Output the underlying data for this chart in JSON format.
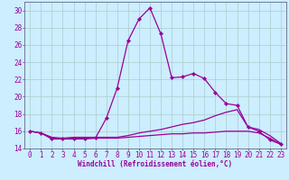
{
  "xlabel": "Windchill (Refroidissement éolien,°C)",
  "background_color": "#cceeff",
  "grid_color": "#aacccc",
  "line_color": "#990099",
  "spine_color": "#666688",
  "xlim": [
    -0.5,
    23.5
  ],
  "ylim": [
    14,
    31
  ],
  "yticks": [
    14,
    16,
    18,
    20,
    22,
    24,
    26,
    28,
    30
  ],
  "xticks": [
    0,
    1,
    2,
    3,
    4,
    5,
    6,
    7,
    8,
    9,
    10,
    11,
    12,
    13,
    14,
    15,
    16,
    17,
    18,
    19,
    20,
    21,
    22,
    23
  ],
  "series1_x": [
    0,
    1,
    2,
    3,
    4,
    5,
    6,
    7,
    8,
    9,
    10,
    11,
    12,
    13,
    14,
    15,
    16,
    17,
    18,
    19,
    20,
    21,
    22,
    23
  ],
  "series1_y": [
    16.0,
    15.8,
    15.1,
    15.1,
    15.1,
    15.1,
    15.2,
    17.5,
    21.0,
    26.5,
    29.0,
    30.3,
    27.3,
    22.2,
    22.3,
    22.7,
    22.1,
    20.5,
    19.2,
    19.0,
    16.5,
    16.0,
    15.0,
    14.5
  ],
  "series2_x": [
    0,
    1,
    2,
    3,
    4,
    5,
    6,
    7,
    8,
    9,
    10,
    11,
    12,
    13,
    14,
    15,
    16,
    17,
    18,
    19,
    20,
    21,
    22,
    23
  ],
  "series2_y": [
    16.0,
    15.8,
    15.3,
    15.2,
    15.3,
    15.3,
    15.3,
    15.3,
    15.3,
    15.5,
    15.8,
    16.0,
    16.2,
    16.5,
    16.8,
    17.0,
    17.3,
    17.8,
    18.2,
    18.5,
    16.5,
    16.2,
    15.5,
    14.6
  ],
  "series3_x": [
    0,
    1,
    2,
    3,
    4,
    5,
    6,
    7,
    8,
    9,
    10,
    11,
    12,
    13,
    14,
    15,
    16,
    17,
    18,
    19,
    20,
    21,
    22,
    23
  ],
  "series3_y": [
    16.0,
    15.8,
    15.2,
    15.1,
    15.2,
    15.2,
    15.2,
    15.2,
    15.2,
    15.3,
    15.4,
    15.5,
    15.6,
    15.7,
    15.7,
    15.8,
    15.8,
    15.9,
    16.0,
    16.0,
    16.0,
    15.8,
    15.2,
    14.5
  ],
  "tick_fontsize": 5.5,
  "xlabel_fontsize": 5.5
}
